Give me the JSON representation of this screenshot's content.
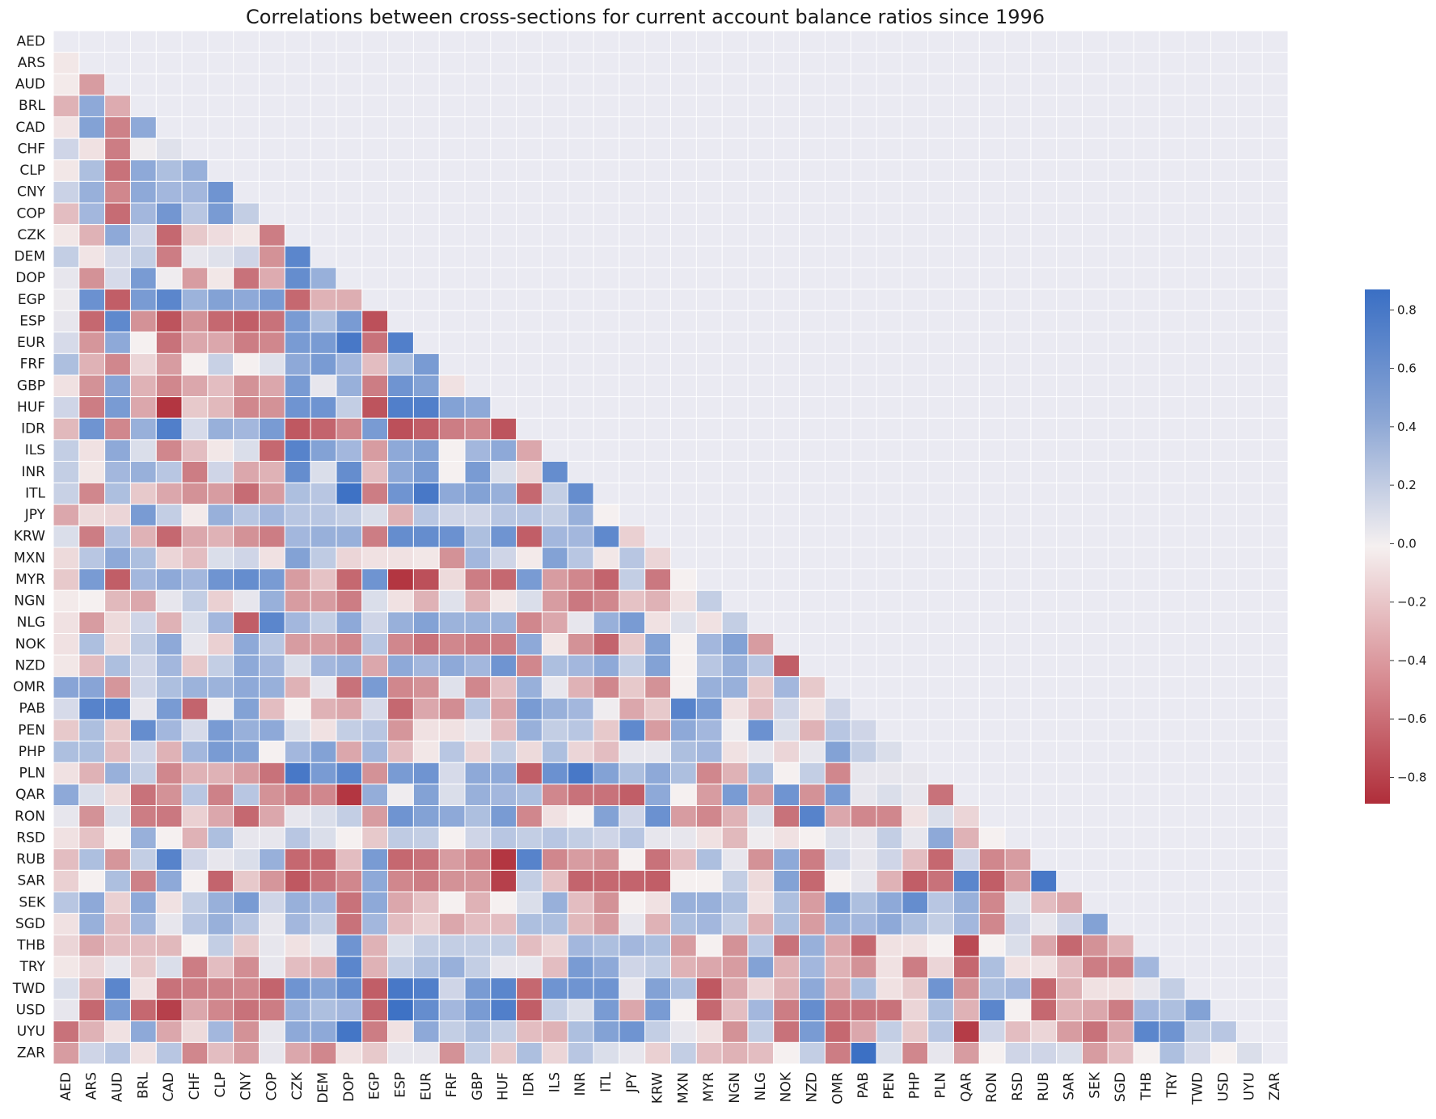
{
  "chart_data": {
    "type": "heatmap",
    "title": "Correlations between cross-sections for current account balance ratios since 1996",
    "xlabel": "",
    "ylabel": "",
    "labels": [
      "AED",
      "ARS",
      "AUD",
      "BRL",
      "CAD",
      "CHF",
      "CLP",
      "CNY",
      "COP",
      "CZK",
      "DEM",
      "DOP",
      "EGP",
      "ESP",
      "EUR",
      "FRF",
      "GBP",
      "HUF",
      "IDR",
      "ILS",
      "INR",
      "ITL",
      "JPY",
      "KRW",
      "MXN",
      "MYR",
      "NGN",
      "NLG",
      "NOK",
      "NZD",
      "OMR",
      "PAB",
      "PEN",
      "PHP",
      "PLN",
      "QAR",
      "RON",
      "RSD",
      "RUB",
      "SAR",
      "SEK",
      "SGD",
      "THB",
      "TRY",
      "TWD",
      "USD",
      "UYU",
      "ZAR"
    ],
    "mask": "upper-triangle-and-diagonal",
    "colorbar": {
      "min": -0.89,
      "max": 0.87,
      "ticks": [
        0.8,
        0.6,
        0.4,
        0.2,
        0.0,
        -0.2,
        -0.4,
        -0.6,
        -0.8
      ],
      "tick_labels": [
        "0.8",
        "0.6",
        "0.4",
        "0.2",
        "0.0",
        "−0.2",
        "−0.4",
        "−0.6",
        "−0.8"
      ],
      "colormap": "vlag_r",
      "color_positive": "#3a6fc4",
      "color_zero": "#f5f0f0",
      "color_negative": "#b02e3a"
    },
    "grid": true,
    "background": "#eaeaf2",
    "values": [
      [],
      [
        -0.03
      ],
      [
        -0.02,
        -0.35
      ],
      [
        -0.25,
        0.45,
        -0.28
      ],
      [
        -0.04,
        0.5,
        -0.48,
        0.45
      ],
      [
        0.15,
        -0.05,
        -0.5,
        0.02,
        0.08
      ],
      [
        -0.03,
        0.3,
        -0.55,
        0.45,
        0.3,
        0.4
      ],
      [
        0.17,
        0.4,
        -0.45,
        0.45,
        0.35,
        0.35,
        0.6
      ],
      [
        -0.2,
        0.35,
        -0.58,
        0.35,
        0.58,
        0.25,
        0.55,
        0.2
      ],
      [
        -0.03,
        -0.25,
        0.45,
        0.15,
        -0.6,
        -0.15,
        -0.07,
        -0.03,
        -0.5
      ],
      [
        0.2,
        -0.04,
        0.12,
        0.2,
        -0.5,
        0.05,
        0.08,
        0.15,
        -0.4,
        0.7
      ],
      [
        0.05,
        -0.4,
        0.12,
        0.55,
        0.02,
        -0.35,
        -0.03,
        -0.55,
        -0.28,
        0.65,
        0.4
      ],
      [
        0.03,
        0.62,
        -0.65,
        0.55,
        0.7,
        0.38,
        0.5,
        0.45,
        0.55,
        -0.6,
        -0.25,
        -0.27
      ],
      [
        0.05,
        -0.6,
        0.68,
        -0.4,
        -0.7,
        -0.4,
        -0.6,
        -0.65,
        -0.55,
        0.55,
        0.3,
        0.55,
        -0.72
      ],
      [
        0.12,
        -0.38,
        0.45,
        0.0,
        -0.55,
        -0.3,
        -0.3,
        -0.5,
        -0.45,
        0.55,
        0.55,
        0.8,
        -0.55,
        0.75
      ],
      [
        0.3,
        -0.25,
        -0.45,
        -0.1,
        -0.35,
        0.0,
        0.18,
        0.0,
        0.08,
        0.45,
        0.55,
        0.35,
        -0.2,
        0.3,
        0.55
      ],
      [
        -0.05,
        -0.4,
        0.48,
        -0.25,
        -0.45,
        -0.3,
        -0.2,
        -0.4,
        -0.3,
        0.55,
        0.05,
        0.4,
        -0.5,
        0.6,
        0.5,
        -0.05
      ],
      [
        0.15,
        -0.5,
        0.55,
        -0.3,
        -0.85,
        -0.15,
        -0.22,
        -0.45,
        -0.4,
        0.6,
        0.6,
        0.2,
        -0.7,
        0.75,
        0.75,
        0.5,
        0.45
      ],
      [
        -0.22,
        0.6,
        -0.45,
        0.4,
        0.75,
        0.12,
        0.4,
        0.35,
        0.55,
        -0.68,
        -0.62,
        -0.45,
        0.55,
        -0.72,
        -0.65,
        -0.5,
        -0.45,
        -0.7
      ],
      [
        0.2,
        -0.05,
        0.45,
        0.1,
        -0.45,
        -0.2,
        -0.03,
        0.1,
        -0.6,
        0.72,
        0.5,
        0.35,
        -0.35,
        0.45,
        0.5,
        0.0,
        0.35,
        0.45,
        -0.3
      ],
      [
        0.2,
        -0.03,
        0.35,
        0.4,
        0.25,
        -0.5,
        0.15,
        -0.3,
        -0.25,
        0.65,
        0.1,
        0.65,
        -0.2,
        0.45,
        0.55,
        0.0,
        0.55,
        0.1,
        -0.1,
        0.65
      ],
      [
        0.18,
        -0.45,
        0.3,
        -0.15,
        -0.3,
        -0.4,
        -0.35,
        -0.58,
        -0.35,
        0.3,
        0.25,
        0.85,
        -0.5,
        0.6,
        0.8,
        0.45,
        0.5,
        0.4,
        -0.6,
        0.2,
        0.65
      ],
      [
        -0.3,
        -0.08,
        -0.1,
        0.55,
        0.2,
        -0.02,
        0.4,
        0.25,
        0.35,
        0.25,
        0.25,
        0.2,
        0.1,
        -0.25,
        0.25,
        0.15,
        0.15,
        0.25,
        0.25,
        0.2,
        0.4,
        0.0
      ],
      [
        0.1,
        -0.5,
        0.28,
        -0.25,
        -0.6,
        -0.3,
        -0.25,
        -0.4,
        -0.5,
        0.35,
        0.4,
        0.4,
        -0.5,
        0.65,
        0.65,
        0.62,
        0.3,
        0.6,
        -0.65,
        0.35,
        0.35,
        0.68,
        -0.12
      ],
      [
        -0.08,
        0.25,
        0.45,
        0.3,
        -0.1,
        -0.2,
        0.1,
        0.15,
        -0.05,
        0.5,
        0.22,
        -0.1,
        -0.05,
        -0.05,
        -0.03,
        -0.4,
        0.35,
        0.15,
        -0.02,
        0.5,
        0.25,
        -0.03,
        0.25,
        -0.1
      ],
      [
        -0.15,
        0.55,
        -0.65,
        0.35,
        0.45,
        0.35,
        0.6,
        0.65,
        0.55,
        -0.35,
        -0.18,
        -0.6,
        0.6,
        -0.85,
        -0.72,
        -0.08,
        -0.5,
        -0.6,
        0.55,
        -0.35,
        -0.45,
        -0.62,
        0.2,
        -0.52,
        0.0
      ],
      [
        -0.02,
        0.0,
        -0.22,
        -0.3,
        0.05,
        0.2,
        -0.12,
        0.05,
        0.4,
        -0.35,
        -0.35,
        -0.5,
        0.1,
        -0.05,
        -0.25,
        0.08,
        -0.25,
        -0.03,
        0.1,
        -0.35,
        -0.52,
        -0.45,
        -0.18,
        -0.25,
        -0.05,
        0.2
      ],
      [
        -0.05,
        -0.35,
        -0.08,
        0.15,
        -0.25,
        0.1,
        0.35,
        -0.65,
        0.7,
        0.35,
        0.2,
        0.45,
        0.15,
        0.4,
        0.5,
        0.38,
        0.38,
        0.38,
        -0.45,
        -0.3,
        0.05,
        0.4,
        0.55,
        -0.05,
        0.08,
        -0.05,
        0.2
      ],
      [
        -0.05,
        0.3,
        -0.08,
        0.22,
        0.45,
        0.05,
        -0.12,
        0.45,
        0.25,
        -0.35,
        -0.35,
        -0.45,
        0.25,
        -0.45,
        -0.55,
        -0.45,
        -0.5,
        -0.5,
        0.45,
        -0.03,
        -0.4,
        -0.62,
        -0.15,
        0.5,
        0.0,
        0.35,
        0.5,
        -0.35
      ],
      [
        -0.03,
        -0.2,
        0.3,
        0.15,
        0.35,
        -0.15,
        0.2,
        0.45,
        0.35,
        0.1,
        0.35,
        0.4,
        -0.3,
        0.45,
        0.35,
        0.45,
        0.35,
        0.6,
        -0.45,
        0.3,
        0.35,
        0.45,
        0.2,
        0.5,
        0.0,
        0.25,
        0.4,
        0.25,
        -0.65
      ],
      [
        0.48,
        0.48,
        -0.38,
        0.15,
        0.3,
        0.38,
        0.38,
        0.45,
        0.4,
        -0.25,
        0.05,
        -0.55,
        0.55,
        -0.45,
        -0.4,
        0.08,
        -0.45,
        -0.2,
        0.4,
        0.05,
        -0.25,
        -0.45,
        -0.15,
        -0.4,
        0.0,
        0.4,
        0.4,
        -0.15,
        0.35,
        -0.15
      ],
      [
        0.12,
        0.72,
        0.72,
        0.05,
        0.55,
        -0.62,
        0.02,
        0.5,
        -0.2,
        0.0,
        -0.25,
        -0.3,
        0.12,
        -0.6,
        -0.3,
        -0.42,
        0.25,
        -0.32,
        0.55,
        0.4,
        0.35,
        0.02,
        -0.3,
        -0.15,
        0.72,
        0.55,
        -0.05,
        -0.2,
        0.15,
        -0.05,
        0.15
      ],
      [
        -0.15,
        0.3,
        -0.15,
        0.65,
        0.35,
        0.12,
        0.55,
        0.4,
        0.45,
        0.1,
        -0.05,
        0.2,
        0.25,
        -0.38,
        -0.05,
        -0.05,
        0.05,
        -0.2,
        0.4,
        0.2,
        0.25,
        -0.15,
        0.68,
        -0.35,
        0.45,
        0.35,
        0.02,
        0.62,
        0.1,
        -0.25,
        0.25,
        0.15
      ],
      [
        0.3,
        0.3,
        -0.2,
        0.15,
        -0.25,
        0.35,
        0.55,
        0.5,
        0.0,
        0.35,
        0.5,
        -0.3,
        0.35,
        -0.2,
        -0.03,
        0.25,
        -0.1,
        0.2,
        -0.08,
        0.3,
        -0.1,
        -0.2,
        0.05,
        0.05,
        0.3,
        0.35,
        -0.05,
        0.05,
        -0.1,
        0.05,
        0.5,
        0.2,
        0.1
      ],
      [
        -0.05,
        -0.25,
        0.4,
        0.2,
        -0.45,
        -0.25,
        -0.25,
        -0.35,
        -0.55,
        0.8,
        0.55,
        0.7,
        -0.4,
        0.55,
        0.6,
        0.12,
        0.45,
        0.45,
        -0.65,
        0.62,
        0.8,
        0.5,
        0.3,
        0.45,
        0.3,
        -0.45,
        -0.25,
        0.3,
        0.0,
        0.2,
        -0.45,
        0.05,
        0.05,
        0.05
      ],
      [
        0.45,
        0.1,
        -0.08,
        -0.55,
        -0.4,
        0.25,
        -0.48,
        0.25,
        -0.4,
        -0.5,
        -0.45,
        -0.85,
        0.42,
        0.02,
        0.5,
        0.1,
        0.4,
        0.35,
        0.3,
        -0.45,
        -0.55,
        -0.55,
        -0.65,
        0.45,
        0.0,
        -0.35,
        0.55,
        -0.35,
        0.6,
        -0.4,
        0.55,
        0.05,
        0.1,
        0.05,
        -0.55
      ],
      [
        0.05,
        -0.4,
        0.1,
        -0.5,
        -0.52,
        -0.12,
        -0.3,
        -0.6,
        -0.3,
        0.05,
        0.1,
        0.2,
        -0.35,
        0.6,
        0.5,
        0.45,
        0.3,
        0.55,
        -0.45,
        -0.05,
        0.0,
        0.5,
        0.15,
        0.62,
        -0.35,
        -0.45,
        -0.25,
        0.1,
        -0.55,
        0.72,
        -0.3,
        -0.45,
        -0.45,
        -0.05,
        0.1,
        -0.1
      ],
      [
        -0.05,
        -0.18,
        0.0,
        0.4,
        0.0,
        -0.25,
        0.3,
        0.05,
        0.05,
        0.25,
        0.1,
        0.0,
        -0.15,
        0.22,
        0.2,
        0.0,
        0.15,
        0.25,
        0.2,
        0.25,
        0.2,
        0.15,
        0.25,
        0.05,
        0.05,
        -0.05,
        -0.22,
        0.02,
        -0.05,
        0.0,
        0.08,
        0.05,
        0.2,
        0.05,
        0.45,
        -0.25,
        0.0
      ],
      [
        -0.2,
        0.3,
        -0.38,
        0.2,
        0.72,
        0.15,
        0.05,
        0.1,
        0.4,
        -0.6,
        -0.6,
        -0.2,
        0.55,
        -0.6,
        -0.55,
        -0.35,
        -0.45,
        -0.85,
        0.72,
        -0.45,
        -0.35,
        -0.4,
        0.0,
        -0.55,
        -0.2,
        0.3,
        0.05,
        -0.4,
        0.45,
        -0.5,
        0.15,
        0.05,
        0.15,
        -0.2,
        -0.6,
        0.15,
        -0.45,
        -0.35
      ],
      [
        -0.12,
        0.0,
        0.3,
        -0.48,
        0.45,
        0.0,
        -0.62,
        -0.15,
        -0.38,
        -0.68,
        -0.55,
        -0.45,
        0.45,
        -0.45,
        -0.5,
        -0.4,
        -0.38,
        -0.8,
        0.2,
        -0.18,
        -0.62,
        -0.6,
        -0.62,
        -0.65,
        0.0,
        0.0,
        0.2,
        -0.08,
        0.5,
        -0.6,
        0.0,
        0.05,
        -0.25,
        -0.65,
        -0.55,
        0.7,
        -0.65,
        -0.35,
        0.8
      ],
      [
        0.25,
        0.45,
        -0.12,
        0.45,
        -0.05,
        0.2,
        0.4,
        0.55,
        0.15,
        0.4,
        0.35,
        -0.55,
        0.45,
        -0.3,
        -0.18,
        0.0,
        -0.25,
        0.0,
        0.1,
        0.4,
        -0.2,
        -0.4,
        0.0,
        -0.05,
        0.4,
        0.4,
        0.3,
        -0.05,
        0.3,
        -0.35,
        0.55,
        0.3,
        0.45,
        0.65,
        0.25,
        0.4,
        -0.45,
        0.08,
        -0.2,
        -0.3
      ],
      [
        -0.05,
        0.4,
        -0.2,
        0.35,
        0.05,
        0.25,
        0.4,
        0.25,
        0.05,
        0.35,
        0.2,
        -0.55,
        0.35,
        -0.2,
        -0.12,
        -0.3,
        -0.2,
        -0.2,
        0.3,
        0.3,
        -0.22,
        -0.35,
        0.05,
        -0.25,
        0.3,
        0.35,
        0.2,
        -0.25,
        0.3,
        -0.35,
        0.4,
        0.35,
        0.45,
        0.3,
        0.2,
        0.35,
        -0.45,
        0.15,
        0.05,
        0.15,
        0.5
      ],
      [
        -0.1,
        -0.3,
        -0.2,
        -0.2,
        -0.22,
        0.0,
        0.2,
        -0.15,
        0.05,
        -0.05,
        0.05,
        0.6,
        -0.25,
        0.1,
        0.2,
        0.2,
        0.2,
        0.2,
        -0.2,
        -0.1,
        0.35,
        0.3,
        0.35,
        0.3,
        -0.35,
        0.0,
        -0.4,
        0.25,
        -0.55,
        0.4,
        -0.3,
        -0.6,
        -0.05,
        -0.05,
        0.0,
        -0.75,
        0.0,
        0.1,
        -0.3,
        -0.6,
        -0.4,
        -0.25
      ],
      [
        -0.03,
        -0.1,
        0.05,
        -0.15,
        0.1,
        -0.5,
        -0.2,
        -0.42,
        0.05,
        -0.2,
        -0.25,
        0.7,
        -0.25,
        0.2,
        0.3,
        0.4,
        0.2,
        0.05,
        0.05,
        -0.2,
        0.55,
        0.45,
        0.15,
        0.2,
        -0.25,
        -0.3,
        -0.35,
        0.5,
        -0.25,
        0.35,
        -0.25,
        -0.4,
        -0.05,
        -0.5,
        -0.1,
        -0.6,
        0.3,
        -0.05,
        -0.05,
        -0.2,
        -0.5,
        -0.5,
        0.35
      ],
      [
        0.1,
        -0.25,
        0.7,
        -0.05,
        -0.55,
        -0.5,
        -0.48,
        -0.45,
        -0.62,
        0.6,
        0.5,
        0.65,
        -0.65,
        0.8,
        0.75,
        0.15,
        0.55,
        0.7,
        -0.6,
        0.6,
        0.6,
        0.6,
        0.05,
        0.5,
        0.3,
        -0.68,
        -0.3,
        -0.1,
        -0.25,
        0.45,
        -0.3,
        0.3,
        -0.05,
        -0.15,
        0.6,
        -0.4,
        0.3,
        0.35,
        -0.6,
        -0.25,
        -0.05,
        -0.05,
        0.05,
        0.2
      ],
      [
        0.05,
        -0.6,
        0.55,
        -0.6,
        -0.8,
        -0.3,
        -0.45,
        -0.55,
        -0.5,
        0.4,
        0.3,
        0.35,
        -0.62,
        0.85,
        0.65,
        0.35,
        0.55,
        0.75,
        -0.65,
        0.2,
        0.1,
        0.55,
        -0.3,
        0.55,
        0.0,
        -0.6,
        -0.2,
        0.35,
        -0.5,
        0.65,
        -0.55,
        -0.55,
        -0.55,
        -0.1,
        0.3,
        -0.25,
        0.7,
        0.0,
        -0.6,
        -0.25,
        -0.3,
        -0.5,
        0.35,
        0.3,
        0.5
      ],
      [
        -0.55,
        -0.25,
        -0.05,
        0.45,
        -0.3,
        -0.08,
        0.35,
        -0.4,
        0.05,
        0.45,
        0.45,
        0.82,
        -0.5,
        -0.05,
        0.45,
        0.2,
        0.3,
        0.2,
        -0.2,
        -0.25,
        0.3,
        0.5,
        0.6,
        0.2,
        0.05,
        -0.05,
        -0.4,
        0.2,
        -0.55,
        0.55,
        -0.6,
        -0.3,
        0.2,
        -0.15,
        0.25,
        -0.82,
        0.15,
        -0.2,
        -0.1,
        -0.35,
        -0.55,
        -0.3,
        0.7,
        0.6,
        0.2,
        0.25
      ],
      [
        -0.35,
        0.15,
        0.25,
        -0.05,
        0.25,
        -0.45,
        -0.2,
        -0.35,
        0.05,
        -0.3,
        -0.45,
        -0.05,
        -0.15,
        0.05,
        0.05,
        -0.4,
        0.2,
        -0.15,
        0.3,
        -0.1,
        0.25,
        0.1,
        0.05,
        -0.12,
        0.2,
        -0.2,
        -0.25,
        -0.2,
        0.0,
        0.2,
        -0.5,
        0.86,
        0.1,
        -0.45,
        0.05,
        -0.35,
        0.0,
        0.15,
        0.15,
        0.1,
        -0.35,
        -0.2,
        0.0,
        0.3,
        0.12,
        0.0,
        0.1
      ]
    ]
  }
}
